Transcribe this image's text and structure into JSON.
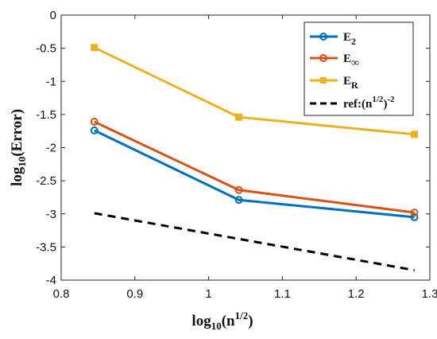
{
  "chart_data": {
    "type": "line",
    "xlabel": "log10(n^1/2)",
    "ylabel": "log10(Error)",
    "xlim": [
      0.8,
      1.3
    ],
    "ylim": [
      -4,
      0
    ],
    "x_ticks": [
      0.8,
      0.9,
      1.0,
      1.1,
      1.2,
      1.3
    ],
    "y_ticks": [
      0,
      -0.5,
      -1,
      -1.5,
      -2,
      -2.5,
      -3,
      -3.5,
      -4
    ],
    "x_tick_labels": [
      "0.8",
      "0.9",
      "1",
      "1.1",
      "1.2",
      "1.3"
    ],
    "y_tick_labels": [
      "0",
      "-0.5",
      "-1",
      "-1.5",
      "-2",
      "-2.5",
      "-3",
      "-3.5",
      "-4"
    ],
    "grid": false,
    "legend_position": "top-right",
    "series": [
      {
        "name": "E2",
        "color": "#0072BD",
        "marker": "circle",
        "line": "solid",
        "x": [
          0.845,
          1.041,
          1.279
        ],
        "y": [
          -1.74,
          -2.79,
          -3.05
        ]
      },
      {
        "name": "E∞",
        "color": "#D95319",
        "marker": "circle",
        "line": "solid",
        "x": [
          0.845,
          1.041,
          1.279
        ],
        "y": [
          -1.61,
          -2.64,
          -2.98
        ]
      },
      {
        "name": "ER",
        "color": "#EDB120",
        "marker": "square",
        "line": "solid",
        "x": [
          0.845,
          1.041,
          1.279
        ],
        "y": [
          -0.49,
          -1.54,
          -1.8
        ]
      },
      {
        "name": "ref:(n^1/2)^-2",
        "color": "#000000",
        "marker": "none",
        "line": "dashed",
        "x": [
          0.845,
          1.279
        ],
        "y": [
          -2.99,
          -3.85
        ]
      }
    ]
  }
}
